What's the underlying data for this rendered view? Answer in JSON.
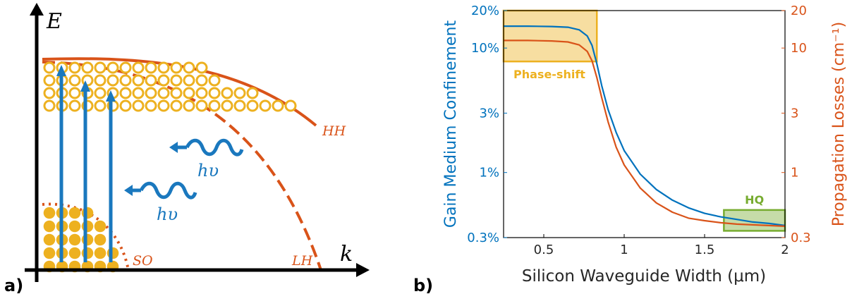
{
  "panel_a": {
    "label": "a)",
    "axis_energy": "E",
    "axis_k": "k",
    "band_hh": "HH",
    "band_lh": "LH",
    "band_so": "SO",
    "photon_label_1": "hυ",
    "photon_label_2": "hυ",
    "colors": {
      "band": "#D95319",
      "carrier": "#EDB120",
      "arrow": "#1A78BE",
      "axis": "#000000"
    }
  },
  "panel_b": {
    "label": "b)",
    "colors": {
      "left_axis": "#0072BD",
      "right_axis": "#D95319",
      "phase_box": "#EDB120",
      "hq_box": "#77AC30",
      "curve_blue": "#0072BD",
      "curve_orange": "#D95319"
    }
  },
  "chart_data": {
    "type": "line",
    "title": "",
    "xlabel": "Silicon Waveguide Width (μm)",
    "ylabel": "Gain Medium Confinement",
    "ylabel_right": "Propagation Losses (cm⁻¹)",
    "xlim": [
      0.25,
      2.0
    ],
    "ylim": [
      0.3,
      20
    ],
    "ylim_right": [
      0.3,
      20
    ],
    "yscale": "log",
    "xticks": [
      0.5,
      1,
      1.5,
      2
    ],
    "xtick_labels": [
      "0.5",
      "1",
      "1.5",
      "2"
    ],
    "yticks": [
      0.3,
      1,
      3,
      10,
      20
    ],
    "ytick_labels": [
      "0.3%",
      "1%",
      "3%",
      "10%",
      "20%"
    ],
    "yticks_right": [
      0.3,
      1,
      3,
      10,
      20
    ],
    "ytick_labels_right": [
      "0.3",
      "1",
      "3",
      "10",
      "20"
    ],
    "grid": false,
    "series": [
      {
        "axis": "left",
        "color": "#0072BD",
        "x": [
          0.25,
          0.4,
          0.55,
          0.65,
          0.72,
          0.77,
          0.8,
          0.83,
          0.86,
          0.9,
          0.95,
          1.0,
          1.1,
          1.2,
          1.3,
          1.4,
          1.5,
          1.6,
          1.7,
          1.8,
          1.9,
          2.0
        ],
        "y": [
          15.0,
          15.0,
          14.9,
          14.7,
          14.0,
          12.5,
          10.5,
          7.5,
          5.0,
          3.2,
          2.1,
          1.5,
          0.97,
          0.73,
          0.6,
          0.52,
          0.47,
          0.44,
          0.42,
          0.4,
          0.39,
          0.375
        ]
      },
      {
        "axis": "right",
        "color": "#D95319",
        "x": [
          0.25,
          0.4,
          0.55,
          0.65,
          0.72,
          0.77,
          0.8,
          0.83,
          0.86,
          0.9,
          0.95,
          1.0,
          1.1,
          1.2,
          1.3,
          1.4,
          1.5,
          1.6,
          1.7,
          1.8,
          1.9,
          2.0
        ],
        "y": [
          11.5,
          11.5,
          11.4,
          11.2,
          10.6,
          9.4,
          7.9,
          5.8,
          4.0,
          2.55,
          1.6,
          1.15,
          0.75,
          0.57,
          0.48,
          0.43,
          0.41,
          0.395,
          0.385,
          0.38,
          0.375,
          0.37
        ]
      }
    ],
    "annotations": [
      {
        "text": "Phase-shift",
        "x_range": [
          0.25,
          0.83
        ],
        "y_range": [
          7.8,
          20
        ],
        "color": "#EDB120"
      },
      {
        "text": "HQ",
        "x_range": [
          1.62,
          2.0
        ],
        "y_range": [
          0.34,
          0.5
        ],
        "color": "#77AC30"
      }
    ]
  }
}
